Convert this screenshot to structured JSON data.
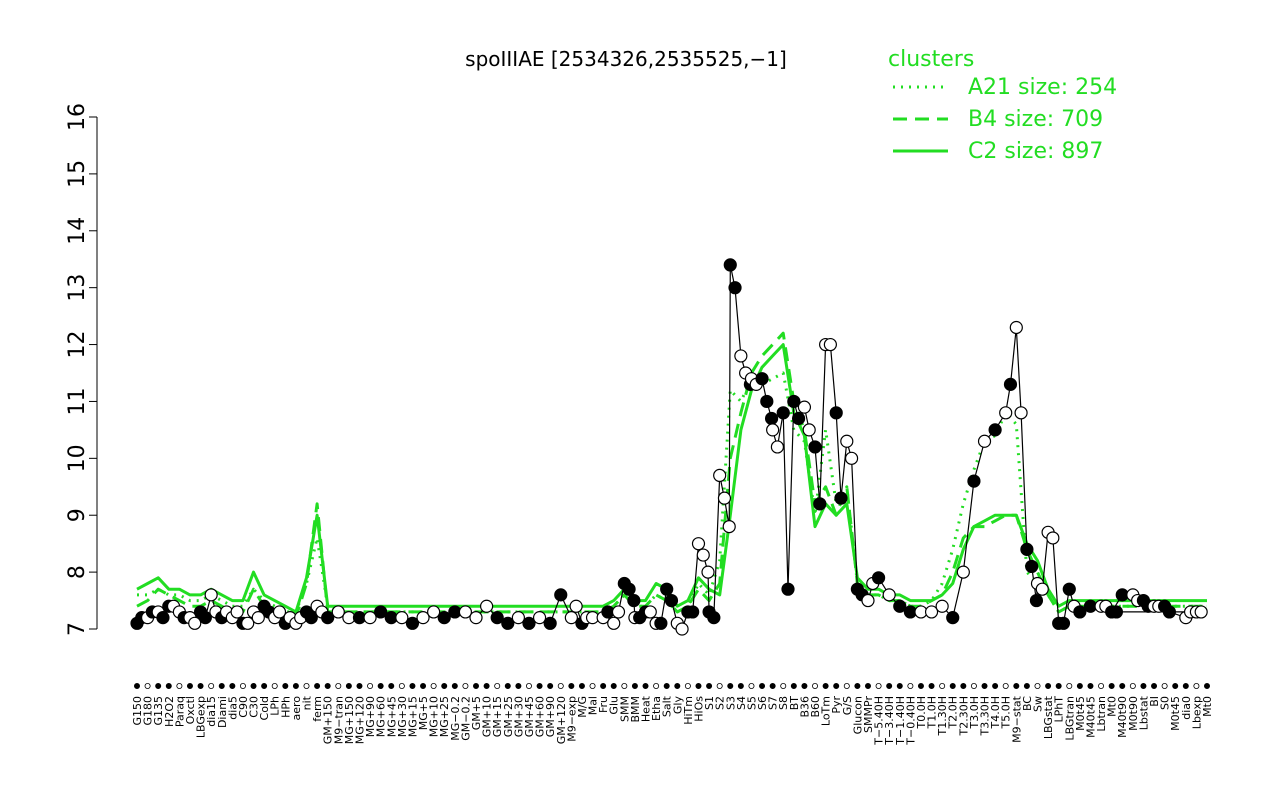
{
  "chart_data": {
    "type": "line",
    "title": "spoIIIAE [2534326,2535525,−1]",
    "xlabel": "",
    "ylabel": "",
    "ylim": [
      7,
      16
    ],
    "yticks": [
      "7",
      "8",
      "9",
      "10",
      "11",
      "12",
      "13",
      "14",
      "15",
      "16"
    ],
    "xtick_labels": [
      "G150",
      "G180",
      "G135",
      "H2O2",
      "Paraq",
      "Oxctl",
      "LBGexp",
      "dia15",
      "Diami",
      "dia5",
      "C90",
      "C30",
      "Cold",
      "LPh",
      "HPh",
      "aero",
      "nit",
      "ferm",
      "GM+150",
      "M9−tran",
      "MG+150",
      "MG+120",
      "MG+90",
      "MG+60",
      "MG+45",
      "MG+30",
      "MG+15",
      "MG+5",
      "MG+10",
      "MG+25",
      "MG−0.2",
      "GM−0.2",
      "GM+5",
      "GM+10",
      "GM+15",
      "GM+25",
      "GM+30",
      "GM+45",
      "GM+60",
      "GM+90",
      "GM+120",
      "M9−exp",
      "M/G",
      "Mal",
      "Fru",
      "Glu",
      "SMM",
      "BMM",
      "Heat",
      "Etha",
      "Salt",
      "Gly",
      "HiTm",
      "HiOs",
      "S1",
      "S2",
      "S3",
      "S4",
      "S5",
      "S6",
      "S7",
      "S8",
      "BT",
      "B36",
      "B60",
      "LoTm",
      "Pyr",
      "G/S",
      "Glucon",
      "SMMPr",
      "T−5.40H",
      "T−3.40H",
      "T−1.40H",
      "T−0.40H",
      "T0.0H",
      "T1.0H",
      "T1.30H",
      "T2.0H",
      "T2.30H",
      "T3.0H",
      "T3.30H",
      "T4.0H",
      "T5.0H",
      "M9−stat",
      "BC",
      "Sw",
      "LBGstat",
      "LPhT",
      "LBGtran",
      "M0t45",
      "M40t45",
      "Lbtran",
      "Mt0",
      "M40t90",
      "M0t90",
      "Lbstat",
      "BI",
      "S0",
      "M0t45",
      "dia0",
      "Lbexp",
      "Mt0"
    ],
    "legend": {
      "title": "clusters",
      "position": "top-right",
      "entries": [
        "A21 size: 254",
        "B4 size: 709",
        "C2 size: 897"
      ]
    },
    "series": [
      {
        "name": "A21 size: 254",
        "style": "dotted",
        "color": "#22dd22",
        "values": [
          7.6,
          7.6,
          7.7,
          7.6,
          7.6,
          7.5,
          7.5,
          7.6,
          7.5,
          7.4,
          7.4,
          7.7,
          7.5,
          7.4,
          7.3,
          7.3,
          7.8,
          8.6,
          7.4,
          7.3,
          7.3,
          7.3,
          7.3,
          7.3,
          7.3,
          7.3,
          7.3,
          7.3,
          7.3,
          7.3,
          7.3,
          7.3,
          7.3,
          7.3,
          7.3,
          7.3,
          7.3,
          7.3,
          7.3,
          7.3,
          7.3,
          7.3,
          7.3,
          7.3,
          7.3,
          7.4,
          7.6,
          7.4,
          7.4,
          7.6,
          7.5,
          7.3,
          7.4,
          7.8,
          7.6,
          8.2,
          11.2,
          11.0,
          11.4,
          11.3,
          11.4,
          11.5,
          10.5,
          10.3,
          9.0,
          10.5,
          9.2,
          9.5,
          7.8,
          7.6,
          7.6,
          7.5,
          7.5,
          7.4,
          7.4,
          7.5,
          7.8,
          8.4,
          9.2,
          9.8,
          10.3,
          10.4,
          10.8,
          10.6,
          8.0,
          7.8,
          7.6,
          7.3,
          7.4,
          7.4,
          7.4,
          7.4,
          7.4,
          7.4,
          7.4,
          7.4,
          7.4,
          7.4,
          7.4,
          7.4,
          7.4,
          7.4
        ]
      },
      {
        "name": "B4 size: 709",
        "style": "dashed",
        "color": "#22dd22",
        "values": [
          7.4,
          7.5,
          7.7,
          7.6,
          7.5,
          7.4,
          7.4,
          7.5,
          7.4,
          7.3,
          7.3,
          7.7,
          7.4,
          7.3,
          7.2,
          7.2,
          7.8,
          9.2,
          7.3,
          7.3,
          7.3,
          7.3,
          7.3,
          7.3,
          7.3,
          7.3,
          7.3,
          7.3,
          7.3,
          7.3,
          7.3,
          7.3,
          7.3,
          7.3,
          7.3,
          7.3,
          7.3,
          7.3,
          7.3,
          7.3,
          7.3,
          7.3,
          7.3,
          7.3,
          7.3,
          7.4,
          7.6,
          7.4,
          7.4,
          7.6,
          7.5,
          7.3,
          7.4,
          7.7,
          7.5,
          7.8,
          10.0,
          10.8,
          11.5,
          11.8,
          12.0,
          12.2,
          11.0,
          10.5,
          9.2,
          9.5,
          9.0,
          9.5,
          7.8,
          7.6,
          7.6,
          7.5,
          7.5,
          7.4,
          7.4,
          7.5,
          7.6,
          8.0,
          8.6,
          8.8,
          8.8,
          8.9,
          9.0,
          9.0,
          8.4,
          8.0,
          7.6,
          7.3,
          7.4,
          7.4,
          7.4,
          7.4,
          7.4,
          7.4,
          7.4,
          7.4,
          7.4,
          7.4,
          7.4,
          7.4,
          7.4,
          7.4
        ]
      },
      {
        "name": "C2 size: 897",
        "style": "solid",
        "color": "#22dd22",
        "values": [
          7.7,
          7.8,
          7.9,
          7.7,
          7.7,
          7.6,
          7.6,
          7.7,
          7.6,
          7.5,
          7.5,
          8.0,
          7.6,
          7.5,
          7.4,
          7.3,
          7.9,
          9.0,
          7.4,
          7.4,
          7.4,
          7.4,
          7.4,
          7.4,
          7.4,
          7.4,
          7.4,
          7.4,
          7.4,
          7.4,
          7.4,
          7.4,
          7.4,
          7.4,
          7.4,
          7.4,
          7.4,
          7.4,
          7.4,
          7.4,
          7.4,
          7.4,
          7.4,
          7.4,
          7.4,
          7.5,
          7.7,
          7.5,
          7.5,
          7.8,
          7.7,
          7.4,
          7.5,
          7.9,
          7.7,
          7.6,
          9.0,
          10.5,
          11.2,
          11.6,
          11.8,
          12.0,
          10.8,
          10.4,
          8.8,
          9.2,
          9.0,
          9.2,
          7.9,
          7.7,
          7.7,
          7.6,
          7.6,
          7.5,
          7.5,
          7.5,
          7.6,
          7.8,
          8.4,
          8.8,
          8.9,
          9.0,
          9.0,
          9.0,
          8.5,
          8.2,
          7.7,
          7.4,
          7.5,
          7.5,
          7.5,
          7.5,
          7.5,
          7.5,
          7.5,
          7.5,
          7.5,
          7.5,
          7.5,
          7.5,
          7.5,
          7.5
        ]
      }
    ],
    "points": [
      {
        "x": "G150",
        "y": 7.1,
        "f": 1
      },
      {
        "x": "G150",
        "y": 7.2,
        "f": 1
      },
      {
        "x": "G180",
        "y": 7.2,
        "f": 0
      },
      {
        "x": "G180",
        "y": 7.3,
        "f": 1
      },
      {
        "x": "G135",
        "y": 7.3,
        "f": 0
      },
      {
        "x": "G135",
        "y": 7.2,
        "f": 1
      },
      {
        "x": "H2O2",
        "y": 7.4,
        "f": 1
      },
      {
        "x": "H2O2",
        "y": 7.4,
        "f": 0
      },
      {
        "x": "Paraq",
        "y": 7.3,
        "f": 0
      },
      {
        "x": "Paraq",
        "y": 7.2,
        "f": 1
      },
      {
        "x": "Oxctl",
        "y": 7.2,
        "f": 0
      },
      {
        "x": "Oxctl",
        "y": 7.1,
        "f": 0
      },
      {
        "x": "LBGexp",
        "y": 7.3,
        "f": 1
      },
      {
        "x": "LBGexp",
        "y": 7.2,
        "f": 1
      },
      {
        "x": "dia15",
        "y": 7.6,
        "f": 0
      },
      {
        "x": "dia15",
        "y": 7.3,
        "f": 0
      },
      {
        "x": "Diami",
        "y": 7.2,
        "f": 1
      },
      {
        "x": "Diami",
        "y": 7.3,
        "f": 0
      },
      {
        "x": "dia5",
        "y": 7.2,
        "f": 0
      },
      {
        "x": "dia5",
        "y": 7.3,
        "f": 0
      },
      {
        "x": "C90",
        "y": 7.1,
        "f": 1
      },
      {
        "x": "C90",
        "y": 7.1,
        "f": 0
      },
      {
        "x": "C30",
        "y": 7.3,
        "f": 0
      },
      {
        "x": "C30",
        "y": 7.2,
        "f": 0
      },
      {
        "x": "Cold",
        "y": 7.4,
        "f": 1
      },
      {
        "x": "Cold",
        "y": 7.3,
        "f": 1
      },
      {
        "x": "LPh",
        "y": 7.2,
        "f": 0
      },
      {
        "x": "LPh",
        "y": 7.3,
        "f": 0
      },
      {
        "x": "HPh",
        "y": 7.1,
        "f": 1
      },
      {
        "x": "HPh",
        "y": 7.2,
        "f": 0
      },
      {
        "x": "aero",
        "y": 7.1,
        "f": 0
      },
      {
        "x": "aero",
        "y": 7.2,
        "f": 0
      },
      {
        "x": "nit",
        "y": 7.3,
        "f": 1
      },
      {
        "x": "nit",
        "y": 7.2,
        "f": 1
      },
      {
        "x": "ferm",
        "y": 7.4,
        "f": 0
      },
      {
        "x": "ferm",
        "y": 7.3,
        "f": 0
      },
      {
        "x": "GM+150",
        "y": 7.2,
        "f": 1
      },
      {
        "x": "M9−tran",
        "y": 7.3,
        "f": 0
      },
      {
        "x": "MG+150",
        "y": 7.2,
        "f": 0
      },
      {
        "x": "MG+120",
        "y": 7.2,
        "f": 1
      },
      {
        "x": "MG+90",
        "y": 7.2,
        "f": 0
      },
      {
        "x": "MG+60",
        "y": 7.3,
        "f": 1
      },
      {
        "x": "MG+45",
        "y": 7.2,
        "f": 1
      },
      {
        "x": "MG+30",
        "y": 7.2,
        "f": 0
      },
      {
        "x": "MG+15",
        "y": 7.1,
        "f": 1
      },
      {
        "x": "MG+5",
        "y": 7.2,
        "f": 0
      },
      {
        "x": "MG+10",
        "y": 7.3,
        "f": 0
      },
      {
        "x": "MG+25",
        "y": 7.2,
        "f": 1
      },
      {
        "x": "MG−0.2",
        "y": 7.3,
        "f": 1
      },
      {
        "x": "GM−0.2",
        "y": 7.3,
        "f": 0
      },
      {
        "x": "GM+5",
        "y": 7.2,
        "f": 0
      },
      {
        "x": "GM+10",
        "y": 7.4,
        "f": 0
      },
      {
        "x": "GM+15",
        "y": 7.2,
        "f": 1
      },
      {
        "x": "GM+25",
        "y": 7.1,
        "f": 1
      },
      {
        "x": "GM+30",
        "y": 7.2,
        "f": 0
      },
      {
        "x": "GM+45",
        "y": 7.1,
        "f": 1
      },
      {
        "x": "GM+60",
        "y": 7.2,
        "f": 0
      },
      {
        "x": "GM+90",
        "y": 7.1,
        "f": 1
      },
      {
        "x": "GM+120",
        "y": 7.6,
        "f": 1
      },
      {
        "x": "M9−exp",
        "y": 7.2,
        "f": 0
      },
      {
        "x": "M9−exp",
        "y": 7.4,
        "f": 0
      },
      {
        "x": "M/G",
        "y": 7.1,
        "f": 1
      },
      {
        "x": "M/G",
        "y": 7.2,
        "f": 0
      },
      {
        "x": "Mal",
        "y": 7.2,
        "f": 0
      },
      {
        "x": "Fru",
        "y": 7.2,
        "f": 0
      },
      {
        "x": "Fru",
        "y": 7.3,
        "f": 1
      },
      {
        "x": "Glu",
        "y": 7.1,
        "f": 0
      },
      {
        "x": "Glu",
        "y": 7.3,
        "f": 0
      },
      {
        "x": "SMM",
        "y": 7.8,
        "f": 1
      },
      {
        "x": "SMM",
        "y": 7.7,
        "f": 1
      },
      {
        "x": "SMM",
        "y": 7.5,
        "f": 1
      },
      {
        "x": "BMM",
        "y": 7.2,
        "f": 0
      },
      {
        "x": "BMM",
        "y": 7.2,
        "f": 1
      },
      {
        "x": "Heat",
        "y": 7.3,
        "f": 1
      },
      {
        "x": "Heat",
        "y": 7.3,
        "f": 0
      },
      {
        "x": "Etha",
        "y": 7.1,
        "f": 0
      },
      {
        "x": "Etha",
        "y": 7.1,
        "f": 1
      },
      {
        "x": "Salt",
        "y": 7.7,
        "f": 1
      },
      {
        "x": "Salt",
        "y": 7.5,
        "f": 1
      },
      {
        "x": "Gly",
        "y": 7.1,
        "f": 0
      },
      {
        "x": "Gly",
        "y": 7.0,
        "f": 0
      },
      {
        "x": "HiTm",
        "y": 7.3,
        "f": 1
      },
      {
        "x": "HiTm",
        "y": 7.3,
        "f": 1
      },
      {
        "x": "HiOs",
        "y": 8.5,
        "f": 0
      },
      {
        "x": "HiOs",
        "y": 8.3,
        "f": 0
      },
      {
        "x": "HiOs",
        "y": 8.0,
        "f": 0
      },
      {
        "x": "S1",
        "y": 7.3,
        "f": 1
      },
      {
        "x": "S1",
        "y": 7.2,
        "f": 1
      },
      {
        "x": "S2",
        "y": 9.7,
        "f": 0
      },
      {
        "x": "S2",
        "y": 9.3,
        "f": 0
      },
      {
        "x": "S2",
        "y": 8.8,
        "f": 0
      },
      {
        "x": "S3",
        "y": 13.4,
        "f": 1
      },
      {
        "x": "S3",
        "y": 13.0,
        "f": 1
      },
      {
        "x": "S4",
        "y": 11.8,
        "f": 0
      },
      {
        "x": "S4",
        "y": 11.5,
        "f": 0
      },
      {
        "x": "S4",
        "y": 11.3,
        "f": 1
      },
      {
        "x": "S5",
        "y": 11.4,
        "f": 0
      },
      {
        "x": "S5",
        "y": 11.3,
        "f": 0
      },
      {
        "x": "S6",
        "y": 11.4,
        "f": 1
      },
      {
        "x": "S6",
        "y": 11.0,
        "f": 1
      },
      {
        "x": "S6",
        "y": 10.7,
        "f": 1
      },
      {
        "x": "S7",
        "y": 10.5,
        "f": 0
      },
      {
        "x": "S7",
        "y": 10.2,
        "f": 0
      },
      {
        "x": "S8",
        "y": 10.8,
        "f": 1
      },
      {
        "x": "S8",
        "y": 7.7,
        "f": 1
      },
      {
        "x": "BT",
        "y": 11.0,
        "f": 1
      },
      {
        "x": "BT",
        "y": 10.7,
        "f": 1
      },
      {
        "x": "B36",
        "y": 10.9,
        "f": 0
      },
      {
        "x": "B36",
        "y": 10.5,
        "f": 0
      },
      {
        "x": "B60",
        "y": 10.2,
        "f": 1
      },
      {
        "x": "B60",
        "y": 9.2,
        "f": 1
      },
      {
        "x": "LoTm",
        "y": 12.0,
        "f": 0
      },
      {
        "x": "LoTm",
        "y": 12.0,
        "f": 0
      },
      {
        "x": "Pyr",
        "y": 10.8,
        "f": 1
      },
      {
        "x": "Pyr",
        "y": 9.3,
        "f": 1
      },
      {
        "x": "G/S",
        "y": 10.3,
        "f": 0
      },
      {
        "x": "G/S",
        "y": 10.0,
        "f": 0
      },
      {
        "x": "Glucon",
        "y": 7.7,
        "f": 1
      },
      {
        "x": "Glucon",
        "y": 7.6,
        "f": 1
      },
      {
        "x": "SMMPr",
        "y": 7.5,
        "f": 0
      },
      {
        "x": "SMMPr",
        "y": 7.8,
        "f": 0
      },
      {
        "x": "T−5.40H",
        "y": 7.9,
        "f": 1
      },
      {
        "x": "T−3.40H",
        "y": 7.6,
        "f": 0
      },
      {
        "x": "T−1.40H",
        "y": 7.4,
        "f": 1
      },
      {
        "x": "T−0.40H",
        "y": 7.3,
        "f": 1
      },
      {
        "x": "T0.0H",
        "y": 7.3,
        "f": 0
      },
      {
        "x": "T1.0H",
        "y": 7.3,
        "f": 0
      },
      {
        "x": "T1.30H",
        "y": 7.4,
        "f": 0
      },
      {
        "x": "T2.0H",
        "y": 7.2,
        "f": 1
      },
      {
        "x": "T2.30H",
        "y": 8.0,
        "f": 0
      },
      {
        "x": "T3.0H",
        "y": 9.6,
        "f": 1
      },
      {
        "x": "T3.30H",
        "y": 10.3,
        "f": 0
      },
      {
        "x": "T4.0H",
        "y": 10.5,
        "f": 1
      },
      {
        "x": "T5.0H",
        "y": 10.8,
        "f": 0
      },
      {
        "x": "T5.0H",
        "y": 11.3,
        "f": 1
      },
      {
        "x": "M9−stat",
        "y": 12.3,
        "f": 0
      },
      {
        "x": "M9−stat",
        "y": 10.8,
        "f": 0
      },
      {
        "x": "BC",
        "y": 8.4,
        "f": 1
      },
      {
        "x": "BC",
        "y": 8.1,
        "f": 1
      },
      {
        "x": "BC",
        "y": 7.5,
        "f": 1
      },
      {
        "x": "Sw",
        "y": 7.8,
        "f": 0
      },
      {
        "x": "Sw",
        "y": 7.7,
        "f": 0
      },
      {
        "x": "LBGstat",
        "y": 8.7,
        "f": 0
      },
      {
        "x": "LBGstat",
        "y": 8.6,
        "f": 0
      },
      {
        "x": "LPhT",
        "y": 7.1,
        "f": 1
      },
      {
        "x": "LPhT",
        "y": 7.1,
        "f": 1
      },
      {
        "x": "LBGtran",
        "y": 7.7,
        "f": 1
      },
      {
        "x": "LBGtran",
        "y": 7.4,
        "f": 0
      },
      {
        "x": "M0t45",
        "y": 7.3,
        "f": 1
      },
      {
        "x": "M40t45",
        "y": 7.4,
        "f": 1
      },
      {
        "x": "Lbtran",
        "y": 7.4,
        "f": 0
      },
      {
        "x": "Lbtran",
        "y": 7.4,
        "f": 0
      },
      {
        "x": "Mt0",
        "y": 7.3,
        "f": 1
      },
      {
        "x": "M40t90",
        "y": 7.6,
        "f": 1
      },
      {
        "x": "M0t90",
        "y": 7.6,
        "f": 0
      },
      {
        "x": "M0t90",
        "y": 7.5,
        "f": 0
      },
      {
        "x": "Lbstat",
        "y": 7.5,
        "f": 1
      },
      {
        "x": "Lbstat",
        "y": 7.4,
        "f": 1
      },
      {
        "x": "BI",
        "y": 7.4,
        "f": 0
      },
      {
        "x": "BI",
        "y": 7.4,
        "f": 0
      },
      {
        "x": "S0",
        "y": 7.4,
        "f": 1
      },
      {
        "x": "S0",
        "y": 7.3,
        "f": 1
      },
      {
        "x": "dia0",
        "y": 7.2,
        "f": 0
      },
      {
        "x": "dia0",
        "y": 7.3,
        "f": 0
      },
      {
        "x": "Lbexp",
        "y": 7.3,
        "f": 0
      },
      {
        "x": "Lbexp",
        "y": 7.3,
        "f": 0
      },
      {
        "x": "Mt0",
        "y": 7.3,
        "f": 1
      }
    ],
    "grid": false
  }
}
